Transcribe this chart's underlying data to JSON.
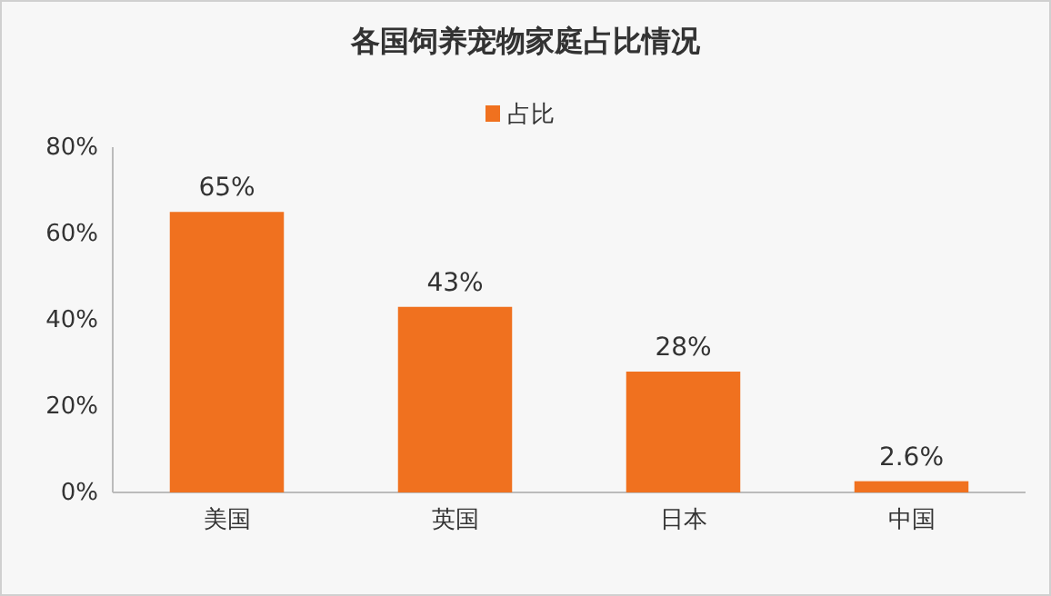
{
  "chart_data": {
    "type": "bar",
    "title": "各国饲养宠物家庭占比情况",
    "categories": [
      "美国",
      "英国",
      "日本",
      "中国"
    ],
    "series": [
      {
        "name": "占比",
        "color": "#f0711f",
        "values": [
          65,
          43,
          28,
          2.6
        ],
        "value_labels": [
          "65%",
          "43%",
          "28%",
          "2.6%"
        ]
      }
    ],
    "ylim": [
      0,
      80
    ],
    "yticks": [
      {
        "value": 0,
        "label": "0%"
      },
      {
        "value": 20,
        "label": "20%"
      },
      {
        "value": 40,
        "label": "40%"
      },
      {
        "value": 60,
        "label": "60%"
      },
      {
        "value": 80,
        "label": "80%"
      }
    ],
    "grid": false,
    "legend": "top"
  }
}
